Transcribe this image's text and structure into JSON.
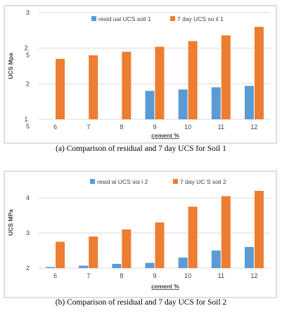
{
  "chart_data": [
    {
      "type": "bar",
      "categories": [
        "6",
        "7",
        "8",
        "9",
        "10",
        "11",
        "12"
      ],
      "series": [
        {
          "name": "resid ual UCS soil   1",
          "values": [
            null,
            null,
            null,
            1.9,
            1.92,
            1.95,
            1.97
          ]
        },
        {
          "name": "7 day UCS so il 1",
          "values": [
            2.35,
            2.4,
            2.45,
            2.52,
            2.6,
            2.68,
            2.8
          ]
        }
      ],
      "xlabel": "cement %",
      "ylabel": "UCS Mpa",
      "yticks": [
        {
          "value": 3,
          "label": "3"
        },
        {
          "value": 2.5,
          "label": "2.\n5"
        },
        {
          "value": 2,
          "label": "2"
        },
        {
          "value": 1.5,
          "label": "1.\n5"
        }
      ],
      "ylim": [
        1.5,
        3
      ],
      "grid": true,
      "legend": "top",
      "colors": [
        "#5b9bd5",
        "#ed7d31"
      ],
      "caption": "(a) Comparison of residual and 7 day UCS for Soil 1"
    },
    {
      "type": "bar",
      "categories": [
        "6",
        "7",
        "8",
        "9",
        "10",
        "11",
        "12"
      ],
      "series": [
        {
          "name": "resid  al UCS soi  l 2",
          "values": [
            2.03,
            2.07,
            2.12,
            2.15,
            2.3,
            2.5,
            2.6
          ]
        },
        {
          "name": "7 day UC S soil 2",
          "values": [
            2.75,
            2.9,
            3.1,
            3.3,
            3.75,
            4.05,
            4.2
          ]
        }
      ],
      "xlabel": "cement %",
      "ylabel": "UCS MPa",
      "yticks": [
        {
          "value": 4,
          "label": "4"
        },
        {
          "value": 3,
          "label": "3"
        },
        {
          "value": 2,
          "label": "2"
        }
      ],
      "ylim": [
        2,
        4.6
      ],
      "grid": true,
      "legend": "top",
      "colors": [
        "#5b9bd5",
        "#ed7d31"
      ],
      "caption": "(b) Comparison of residual and 7 day UCS for Soil 2"
    }
  ]
}
